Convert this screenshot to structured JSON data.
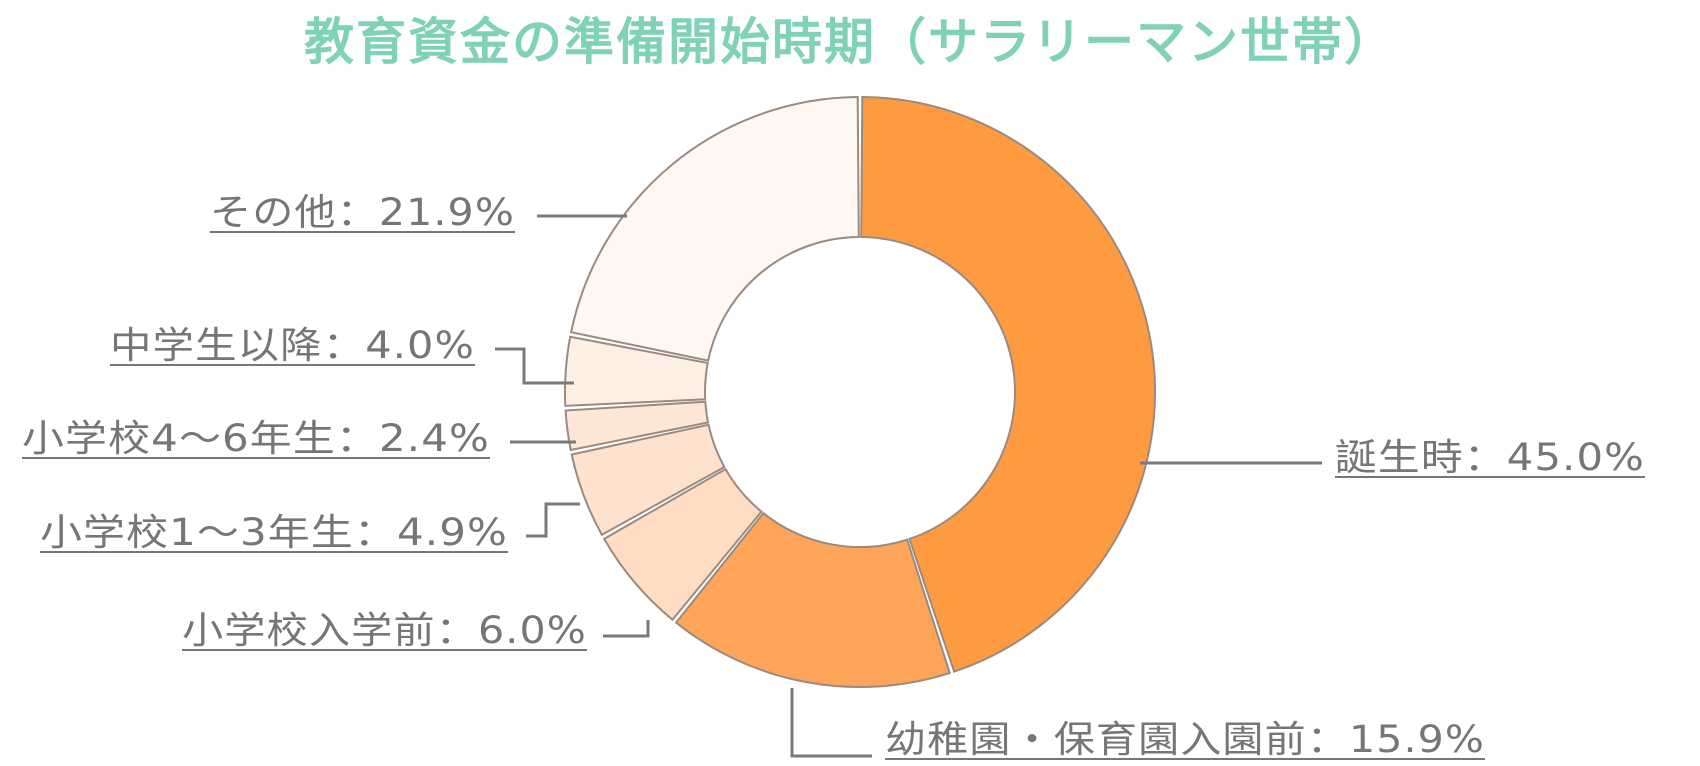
{
  "colors": {
    "title": "#7fd2b4",
    "label": "#767676",
    "leader": "#7a7a7a",
    "slice_border": "#9a8a80"
  },
  "chart_data": {
    "type": "pie",
    "title": "教育資金の準備開始時期（サラリーマン世帯）",
    "legend": "none",
    "slices": [
      {
        "label": "誕生時：45.0%",
        "value": 45.0,
        "color": "#fe9a40"
      },
      {
        "label": "幼稚園・保育園入園前：15.9%",
        "value": 15.9,
        "color": "#ffa559"
      },
      {
        "label": "小学校入学前：6.0%",
        "value": 6.0,
        "color": "#ffdcc2"
      },
      {
        "label": "小学校1～3年生：4.9%",
        "value": 4.9,
        "color": "#ffe2cd"
      },
      {
        "label": "小学校4～6年生：2.4%",
        "value": 2.4,
        "color": "#ffe7d8"
      },
      {
        "label": "中学生以降：4.0%",
        "value": 4.0,
        "color": "#fff0e5"
      },
      {
        "label": "その他：21.9%",
        "value": 21.9,
        "color": "#fff8f2"
      }
    ]
  }
}
